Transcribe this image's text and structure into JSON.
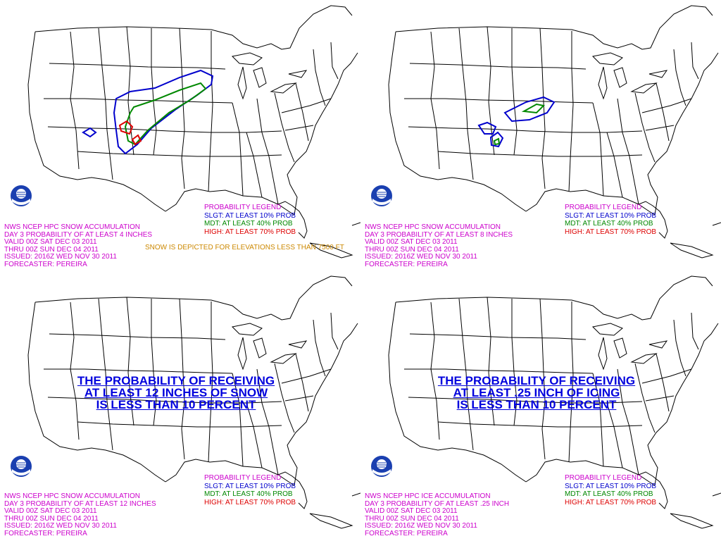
{
  "panels": [
    {
      "info": [
        "NWS NCEP HPC SNOW ACCUMULATION",
        "DAY 3 PROBABILITY OF AT LEAST 4 INCHES",
        "VALID 00Z SAT DEC 03 2011",
        "THRU 00Z SUN DEC 04 2011",
        "ISSUED: 2016Z WED NOV 30 2011",
        "FORECASTER: PEREIRA"
      ],
      "legend": {
        "title": "PROBABILITY LEGEND",
        "slgt": "SLGT: AT LEAST 10% PROB",
        "mdt": "MDT: AT LEAST 40% PROB",
        "high": "HIGH: AT LEAST 70% PROB"
      },
      "note": "SNOW IS DEPICTED FOR ELEVATIONS LESS THAN 7500 FT"
    },
    {
      "info": [
        "NWS NCEP HPC SNOW ACCUMULATION",
        "DAY 3 PROBABILITY OF AT LEAST 8 INCHES",
        "VALID 00Z SAT DEC 03 2011",
        "THRU 00Z SUN DEC 04 2011",
        "ISSUED: 2016Z WED NOV 30 2011",
        "FORECASTER: PEREIRA"
      ],
      "legend": {
        "title": "PROBABILITY LEGEND",
        "slgt": "SLGT: AT LEAST 10% PROB",
        "mdt": "MDT: AT LEAST 40% PROB",
        "high": "HIGH: AT LEAST 70% PROB"
      }
    },
    {
      "info": [
        "NWS NCEP HPC SNOW ACCUMULATION",
        "DAY 3 PROBABILITY OF AT LEAST 12 INCHES",
        "VALID 00Z SAT DEC 03 2011",
        "THRU 00Z SUN DEC 04 2011",
        "ISSUED: 2016Z WED NOV 30 2011",
        "FORECASTER: PEREIRA"
      ],
      "legend": {
        "title": "PROBABILITY LEGEND",
        "slgt": "SLGT: AT LEAST 10% PROB",
        "mdt": "MDT: AT LEAST 40% PROB",
        "high": "HIGH: AT LEAST 70% PROB"
      },
      "message": [
        "THE PROBABILITY OF RECEIVING",
        "AT LEAST 12 INCHES OF SNOW",
        "IS LESS THAN 10 PERCENT"
      ]
    },
    {
      "info": [
        "NWS NCEP HPC ICE ACCUMULATION",
        "DAY 3 PROBABILITY OF AT LEAST .25 INCH",
        "VALID 00Z SAT DEC 03 2011",
        "THRU 00Z SUN DEC 04 2011",
        "ISSUED: 2016Z WED NOV 30 2011",
        "FORECASTER: PEREIRA"
      ],
      "legend": {
        "title": "PROBABILITY LEGEND",
        "slgt": "SLGT: AT LEAST 10% PROB",
        "mdt": "MDT: AT LEAST 40% PROB",
        "high": "HIGH: AT LEAST 70% PROB"
      },
      "message": [
        "THE PROBABILITY OF RECEIVING",
        "AT LEAST .25 INCH OF ICING",
        "IS LESS THAN 10 PERCENT"
      ]
    }
  ],
  "colors": {
    "slgt": "#0000cc",
    "mdt": "#008800",
    "high": "#dd0000",
    "info": "#cc00cc",
    "note": "#cc8800",
    "map_lines": "#000000"
  },
  "icons": {
    "logo": "noaa-logo-icon"
  }
}
